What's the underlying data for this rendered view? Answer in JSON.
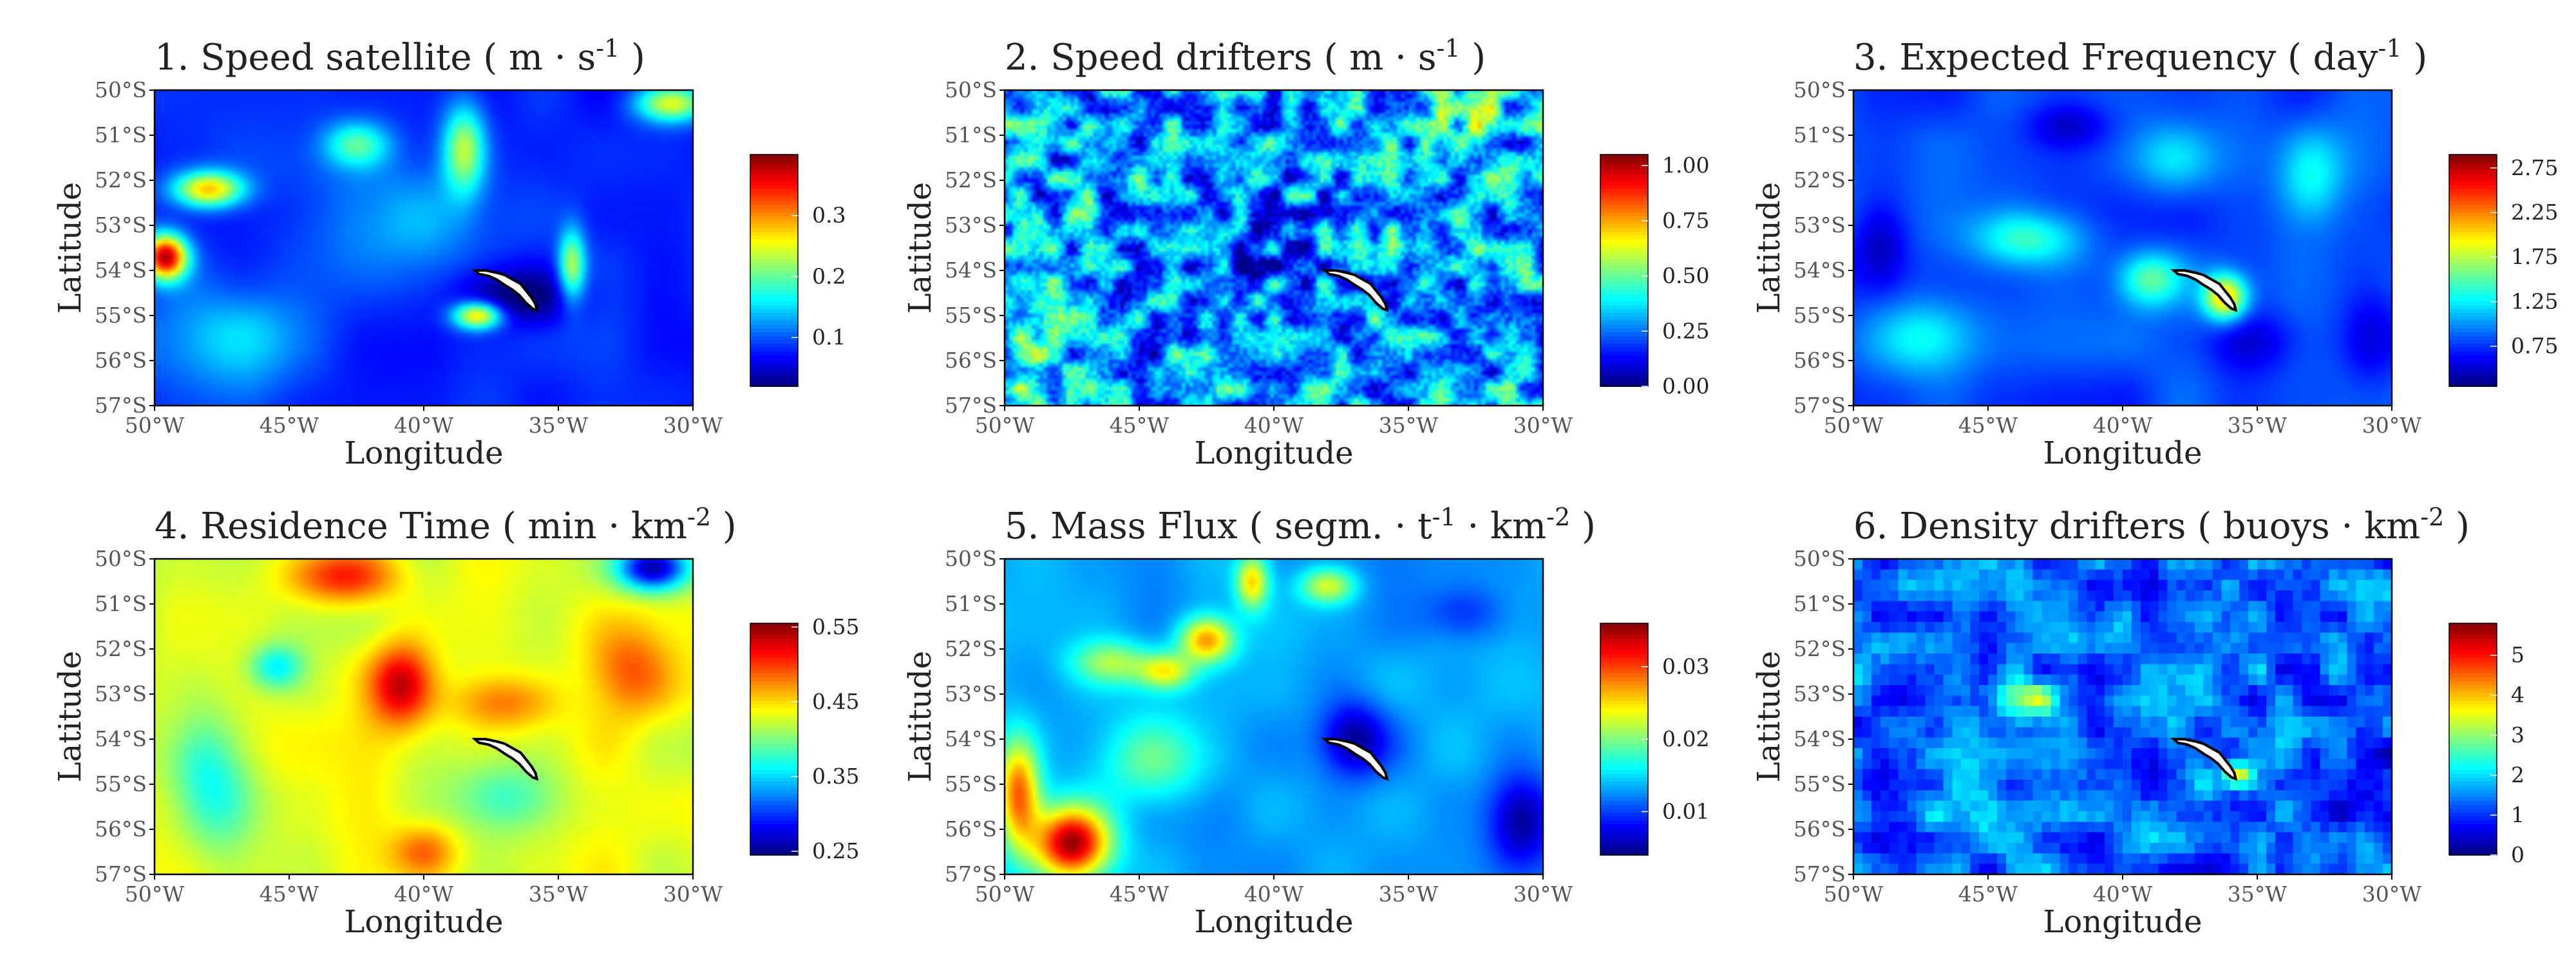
{
  "palette": [
    "#00007f",
    "#0000ff",
    "#007fff",
    "#00ffff",
    "#7fff7f",
    "#ffff00",
    "#ff7f00",
    "#ff0000",
    "#7f0000"
  ],
  "island_color": "#ffffff",
  "chart_data": [
    {
      "type": "heatmap",
      "title_prefix": "1. Speed satellite ( m · s",
      "title_sup": "-1",
      "title_suffix": " )",
      "xlabel": "Longitude",
      "ylabel": "Latitude",
      "x_ticks": [
        "50°W",
        "45°W",
        "40°W",
        "35°W",
        "30°W"
      ],
      "y_ticks": [
        "50°S",
        "51°S",
        "52°S",
        "53°S",
        "54°S",
        "55°S",
        "56°S",
        "57°S"
      ],
      "xlim": [
        -50,
        -30
      ],
      "ylim": [
        -57,
        -50
      ],
      "colorbar": {
        "min": 0.02,
        "max": 0.4,
        "ticks": [
          0.1,
          0.2,
          0.3
        ],
        "tick_labels": [
          "0.1",
          "0.2",
          "0.3"
        ]
      },
      "field": {
        "base": 0.08,
        "seed": 3,
        "noise": 0.015,
        "blobs": [
          {
            "lon": -49.6,
            "lat": -53.7,
            "sx": 0.8,
            "sy": 0.5,
            "v": 0.3
          },
          {
            "lon": -48.0,
            "lat": -52.2,
            "sx": 1.3,
            "sy": 0.4,
            "v": 0.2
          },
          {
            "lon": -42.5,
            "lat": -51.2,
            "sx": 1.2,
            "sy": 0.5,
            "v": 0.1
          },
          {
            "lon": -38.5,
            "lat": -51.3,
            "sx": 0.8,
            "sy": 1.0,
            "v": 0.15
          },
          {
            "lon": -41.0,
            "lat": -53.0,
            "sx": 4.0,
            "sy": 1.5,
            "v": 0.05
          },
          {
            "lon": -38.0,
            "lat": -55.0,
            "sx": 0.9,
            "sy": 0.3,
            "v": 0.2
          },
          {
            "lon": -34.5,
            "lat": -53.9,
            "sx": 0.5,
            "sy": 0.8,
            "v": 0.15
          },
          {
            "lon": -30.8,
            "lat": -50.3,
            "sx": 1.3,
            "sy": 0.4,
            "v": 0.16
          },
          {
            "lon": -47.0,
            "lat": -55.5,
            "sx": 3.0,
            "sy": 1.2,
            "v": 0.06
          },
          {
            "lon": -36.5,
            "lat": -54.6,
            "sx": 2.0,
            "sy": 0.6,
            "v": -0.07
          }
        ]
      }
    },
    {
      "type": "heatmap",
      "title_prefix": "2. Speed drifters ( m · s",
      "title_sup": "-1",
      "title_suffix": " )",
      "xlabel": "Longitude",
      "ylabel": "Latitude",
      "x_ticks": [
        "50°W",
        "45°W",
        "40°W",
        "35°W",
        "30°W"
      ],
      "y_ticks": [
        "50°S",
        "51°S",
        "52°S",
        "53°S",
        "54°S",
        "55°S",
        "56°S",
        "57°S"
      ],
      "xlim": [
        -50,
        -30
      ],
      "ylim": [
        -57,
        -50
      ],
      "colorbar": {
        "min": 0.0,
        "max": 1.05,
        "ticks": [
          0.0,
          0.25,
          0.5,
          0.75,
          1.0
        ],
        "tick_labels": [
          "0.00",
          "0.25",
          "0.50",
          "0.75",
          "1.00"
        ]
      },
      "field": {
        "base": 0.3,
        "seed": 7,
        "noise": 0.25,
        "blobs": [
          {
            "lon": -41.0,
            "lat": -53.5,
            "sx": 3.0,
            "sy": 1.2,
            "v": -0.1
          },
          {
            "lon": -32.5,
            "lat": -50.8,
            "sx": 1.0,
            "sy": 0.6,
            "v": 0.25
          },
          {
            "lon": -49.0,
            "lat": -55.5,
            "sx": 1.0,
            "sy": 1.5,
            "v": 0.15
          }
        ]
      }
    },
    {
      "type": "heatmap",
      "title_prefix": "3. Expected Frequency ( day",
      "title_sup": "-1",
      "title_suffix": " )",
      "xlabel": "Longitude",
      "ylabel": "Latitude",
      "x_ticks": [
        "50°W",
        "45°W",
        "40°W",
        "35°W",
        "30°W"
      ],
      "y_ticks": [
        "50°S",
        "51°S",
        "52°S",
        "53°S",
        "54°S",
        "55°S",
        "56°S",
        "57°S"
      ],
      "xlim": [
        -50,
        -30
      ],
      "ylim": [
        -57,
        -50
      ],
      "colorbar": {
        "min": 0.3,
        "max": 2.9,
        "ticks": [
          0.75,
          1.25,
          1.75,
          2.25,
          2.75
        ],
        "tick_labels": [
          "0.75",
          "1.25",
          "1.75",
          "2.25",
          "2.75"
        ]
      },
      "field": {
        "base": 0.8,
        "seed": 11,
        "noise": 0.12,
        "blobs": [
          {
            "lon": -36.2,
            "lat": -54.6,
            "sx": 0.8,
            "sy": 0.5,
            "v": 1.3
          },
          {
            "lon": -39.0,
            "lat": -54.2,
            "sx": 1.2,
            "sy": 0.6,
            "v": 0.7
          },
          {
            "lon": -43.5,
            "lat": -53.3,
            "sx": 2.0,
            "sy": 0.6,
            "v": 0.6
          },
          {
            "lon": -38.0,
            "lat": -51.5,
            "sx": 1.5,
            "sy": 0.8,
            "v": 0.5
          },
          {
            "lon": -33.0,
            "lat": -51.8,
            "sx": 1.2,
            "sy": 1.0,
            "v": 0.5
          },
          {
            "lon": -47.5,
            "lat": -55.5,
            "sx": 1.8,
            "sy": 0.8,
            "v": 0.4
          },
          {
            "lon": -49.0,
            "lat": -53.5,
            "sx": 1.0,
            "sy": 1.0,
            "v": -0.35
          },
          {
            "lon": -42.0,
            "lat": -50.8,
            "sx": 1.5,
            "sy": 0.5,
            "v": -0.3
          },
          {
            "lon": -35.0,
            "lat": -55.6,
            "sx": 1.6,
            "sy": 0.6,
            "v": -0.2
          },
          {
            "lon": -30.8,
            "lat": -55.5,
            "sx": 1.0,
            "sy": 1.0,
            "v": -0.25
          }
        ]
      }
    },
    {
      "type": "heatmap",
      "title_prefix": "4. Residence Time ( min · km",
      "title_sup": "-2",
      "title_suffix": " )",
      "xlabel": "Longitude",
      "ylabel": "Latitude",
      "x_ticks": [
        "50°W",
        "45°W",
        "40°W",
        "35°W",
        "30°W"
      ],
      "y_ticks": [
        "50°S",
        "51°S",
        "52°S",
        "53°S",
        "54°S",
        "55°S",
        "56°S",
        "57°S"
      ],
      "xlim": [
        -50,
        -30
      ],
      "ylim": [
        -57,
        -50
      ],
      "colorbar": {
        "min": 0.245,
        "max": 0.555,
        "ticks": [
          0.25,
          0.35,
          0.45,
          0.55
        ],
        "tick_labels": [
          "0.25",
          "0.35",
          "0.45",
          "0.55"
        ]
      },
      "field": {
        "base": 0.43,
        "seed": 19,
        "noise": 0.015,
        "blobs": [
          {
            "lon": -40.8,
            "lat": -52.8,
            "sx": 1.2,
            "sy": 0.9,
            "v": 0.11
          },
          {
            "lon": -43.0,
            "lat": -50.4,
            "sx": 2.0,
            "sy": 0.6,
            "v": 0.08
          },
          {
            "lon": -37.0,
            "lat": -53.2,
            "sx": 2.0,
            "sy": 0.6,
            "v": 0.05
          },
          {
            "lon": -32.5,
            "lat": -52.5,
            "sx": 1.5,
            "sy": 1.0,
            "v": 0.06
          },
          {
            "lon": -40.0,
            "lat": -56.5,
            "sx": 1.2,
            "sy": 0.6,
            "v": 0.06
          },
          {
            "lon": -48.0,
            "lat": -55.0,
            "sx": 1.5,
            "sy": 1.5,
            "v": -0.07
          },
          {
            "lon": -45.5,
            "lat": -52.4,
            "sx": 1.0,
            "sy": 0.5,
            "v": -0.07
          },
          {
            "lon": -31.5,
            "lat": -50.2,
            "sx": 1.3,
            "sy": 0.5,
            "v": -0.16
          },
          {
            "lon": -37.0,
            "lat": -55.3,
            "sx": 2.0,
            "sy": 0.8,
            "v": -0.05
          }
        ]
      }
    },
    {
      "type": "heatmap",
      "title_prefix": "5. Mass Flux ( segm. · t",
      "title_sup": "-1",
      "title_mid": " · km",
      "title_sup2": "-2",
      "title_suffix": " )",
      "xlabel": "Longitude",
      "ylabel": "Latitude",
      "x_ticks": [
        "50°W",
        "45°W",
        "40°W",
        "35°W",
        "30°W"
      ],
      "y_ticks": [
        "50°S",
        "51°S",
        "52°S",
        "53°S",
        "54°S",
        "55°S",
        "56°S",
        "57°S"
      ],
      "xlim": [
        -50,
        -30
      ],
      "ylim": [
        -57,
        -50
      ],
      "colorbar": {
        "min": 0.004,
        "max": 0.036,
        "ticks": [
          0.01,
          0.02,
          0.03
        ],
        "tick_labels": [
          "0.01",
          "0.02",
          "0.03"
        ]
      },
      "field": {
        "base": 0.013,
        "seed": 23,
        "noise": 0.0012,
        "blobs": [
          {
            "lon": -47.5,
            "lat": -56.3,
            "sx": 1.4,
            "sy": 0.8,
            "v": 0.022
          },
          {
            "lon": -49.5,
            "lat": -55.2,
            "sx": 0.8,
            "sy": 1.2,
            "v": 0.016
          },
          {
            "lon": -42.5,
            "lat": -51.8,
            "sx": 1.0,
            "sy": 0.5,
            "v": 0.014
          },
          {
            "lon": -40.8,
            "lat": -50.5,
            "sx": 0.6,
            "sy": 0.6,
            "v": 0.012
          },
          {
            "lon": -44.0,
            "lat": -52.5,
            "sx": 1.0,
            "sy": 0.4,
            "v": 0.01
          },
          {
            "lon": -46.0,
            "lat": -52.3,
            "sx": 1.5,
            "sy": 0.5,
            "v": 0.008
          },
          {
            "lon": -38.0,
            "lat": -50.6,
            "sx": 1.0,
            "sy": 0.4,
            "v": 0.01
          },
          {
            "lon": -44.5,
            "lat": -54.5,
            "sx": 2.0,
            "sy": 1.0,
            "v": 0.006
          },
          {
            "lon": -37.0,
            "lat": -54.0,
            "sx": 1.2,
            "sy": 0.8,
            "v": -0.008
          },
          {
            "lon": -30.8,
            "lat": -55.8,
            "sx": 1.2,
            "sy": 1.0,
            "v": -0.008
          },
          {
            "lon": -33.0,
            "lat": -51.2,
            "sx": 1.5,
            "sy": 0.6,
            "v": -0.004
          }
        ]
      }
    },
    {
      "type": "heatmap",
      "title_prefix": "6. Density drifters ( buoys · km",
      "title_sup": "-2",
      "title_suffix": " )",
      "xlabel": "Longitude",
      "ylabel": "Latitude",
      "x_ticks": [
        "50°W",
        "45°W",
        "40°W",
        "35°W",
        "30°W"
      ],
      "y_ticks": [
        "50°S",
        "51°S",
        "52°S",
        "53°S",
        "54°S",
        "55°S",
        "56°S",
        "57°S"
      ],
      "xlim": [
        -50,
        -30
      ],
      "ylim": [
        -57,
        -50
      ],
      "colorbar": {
        "min": 0.0,
        "max": 5.8,
        "ticks": [
          0,
          1,
          2,
          3,
          4,
          5
        ],
        "tick_labels": [
          "0",
          "1",
          "2",
          "3",
          "4",
          "5"
        ]
      },
      "field": {
        "base": 1.3,
        "seed": 31,
        "noise": 0.7,
        "blocky": true,
        "blobs": [
          {
            "lon": -43.5,
            "lat": -53.1,
            "sx": 1.5,
            "sy": 0.4,
            "v": 1.6
          },
          {
            "lon": -40.5,
            "lat": -51.8,
            "sx": 1.0,
            "sy": 0.4,
            "v": 0.7
          },
          {
            "lon": -35.8,
            "lat": -54.8,
            "sx": 0.5,
            "sy": 0.3,
            "v": 2.8
          },
          {
            "lon": -46.5,
            "lat": -55.5,
            "sx": 2.0,
            "sy": 0.8,
            "v": 0.5
          },
          {
            "lon": -31.0,
            "lat": -55.0,
            "sx": 1.5,
            "sy": 1.5,
            "v": -0.6
          }
        ]
      }
    }
  ]
}
